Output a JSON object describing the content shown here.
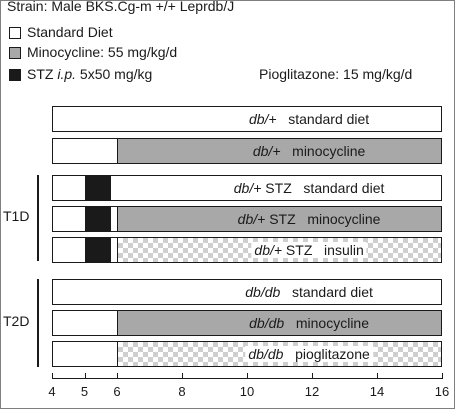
{
  "header": {
    "strain": "Strain: Male BKS.Cg-m +/+ Leprdb/J"
  },
  "legend": {
    "standard": {
      "label": "Standard Diet",
      "color": "#ffffff"
    },
    "minocycline": {
      "label": "Minocycline: 55 mg/kg/d",
      "color": "#a8a8a8"
    },
    "stz": {
      "prefix": "STZ ",
      "route": "i.p.",
      "dose": " 5x50 mg/kg",
      "color": "#1a1a1a"
    },
    "pioglitazone": {
      "label": "Pioglitazone: 15 mg/kg/d"
    }
  },
  "groups": {
    "t1d": "T1D",
    "t2d": "T2D"
  },
  "axis": {
    "min": 4,
    "max": 16,
    "ticks": [
      4,
      5,
      6,
      8,
      10,
      12,
      14,
      16
    ]
  },
  "rows": [
    {
      "genotype": "db/+",
      "treatment": "standard diet",
      "boxed": false,
      "segments": [
        {
          "type": "white",
          "start": 4,
          "end": 16
        }
      ]
    },
    {
      "genotype": "db/+",
      "treatment": "minocycline",
      "boxed": false,
      "segments": [
        {
          "type": "white",
          "start": 4,
          "end": 6
        },
        {
          "type": "gray",
          "start": 6,
          "end": 16
        }
      ]
    },
    {
      "genotype": "db/+ STZ",
      "treatment": "standard diet",
      "boxed": false,
      "segments": [
        {
          "type": "white",
          "start": 4,
          "end": 5
        },
        {
          "type": "black",
          "start": 5,
          "end": 5.8
        },
        {
          "type": "white",
          "start": 5.8,
          "end": 16
        }
      ]
    },
    {
      "genotype": "db/+ STZ",
      "treatment": "minocycline",
      "boxed": false,
      "segments": [
        {
          "type": "white",
          "start": 4,
          "end": 5
        },
        {
          "type": "black",
          "start": 5,
          "end": 5.8
        },
        {
          "type": "white",
          "start": 5.8,
          "end": 6
        },
        {
          "type": "gray",
          "start": 6,
          "end": 16
        }
      ]
    },
    {
      "genotype": "db/+ STZ",
      "treatment": "insulin",
      "boxed": true,
      "segments": [
        {
          "type": "white",
          "start": 4,
          "end": 5
        },
        {
          "type": "black",
          "start": 5,
          "end": 5.8
        },
        {
          "type": "white",
          "start": 5.8,
          "end": 6
        },
        {
          "type": "check",
          "start": 6,
          "end": 16
        }
      ]
    },
    {
      "genotype": "db/db",
      "treatment": "standard diet",
      "boxed": false,
      "segments": [
        {
          "type": "white",
          "start": 4,
          "end": 16
        }
      ]
    },
    {
      "genotype": "db/db",
      "treatment": "minocycline",
      "boxed": false,
      "segments": [
        {
          "type": "white",
          "start": 4,
          "end": 6
        },
        {
          "type": "gray",
          "start": 6,
          "end": 16
        }
      ]
    },
    {
      "genotype": "db/db",
      "treatment": "pioglitazone",
      "boxed": true,
      "segments": [
        {
          "type": "white",
          "start": 4,
          "end": 6
        },
        {
          "type": "check",
          "start": 6,
          "end": 16
        }
      ]
    }
  ]
}
